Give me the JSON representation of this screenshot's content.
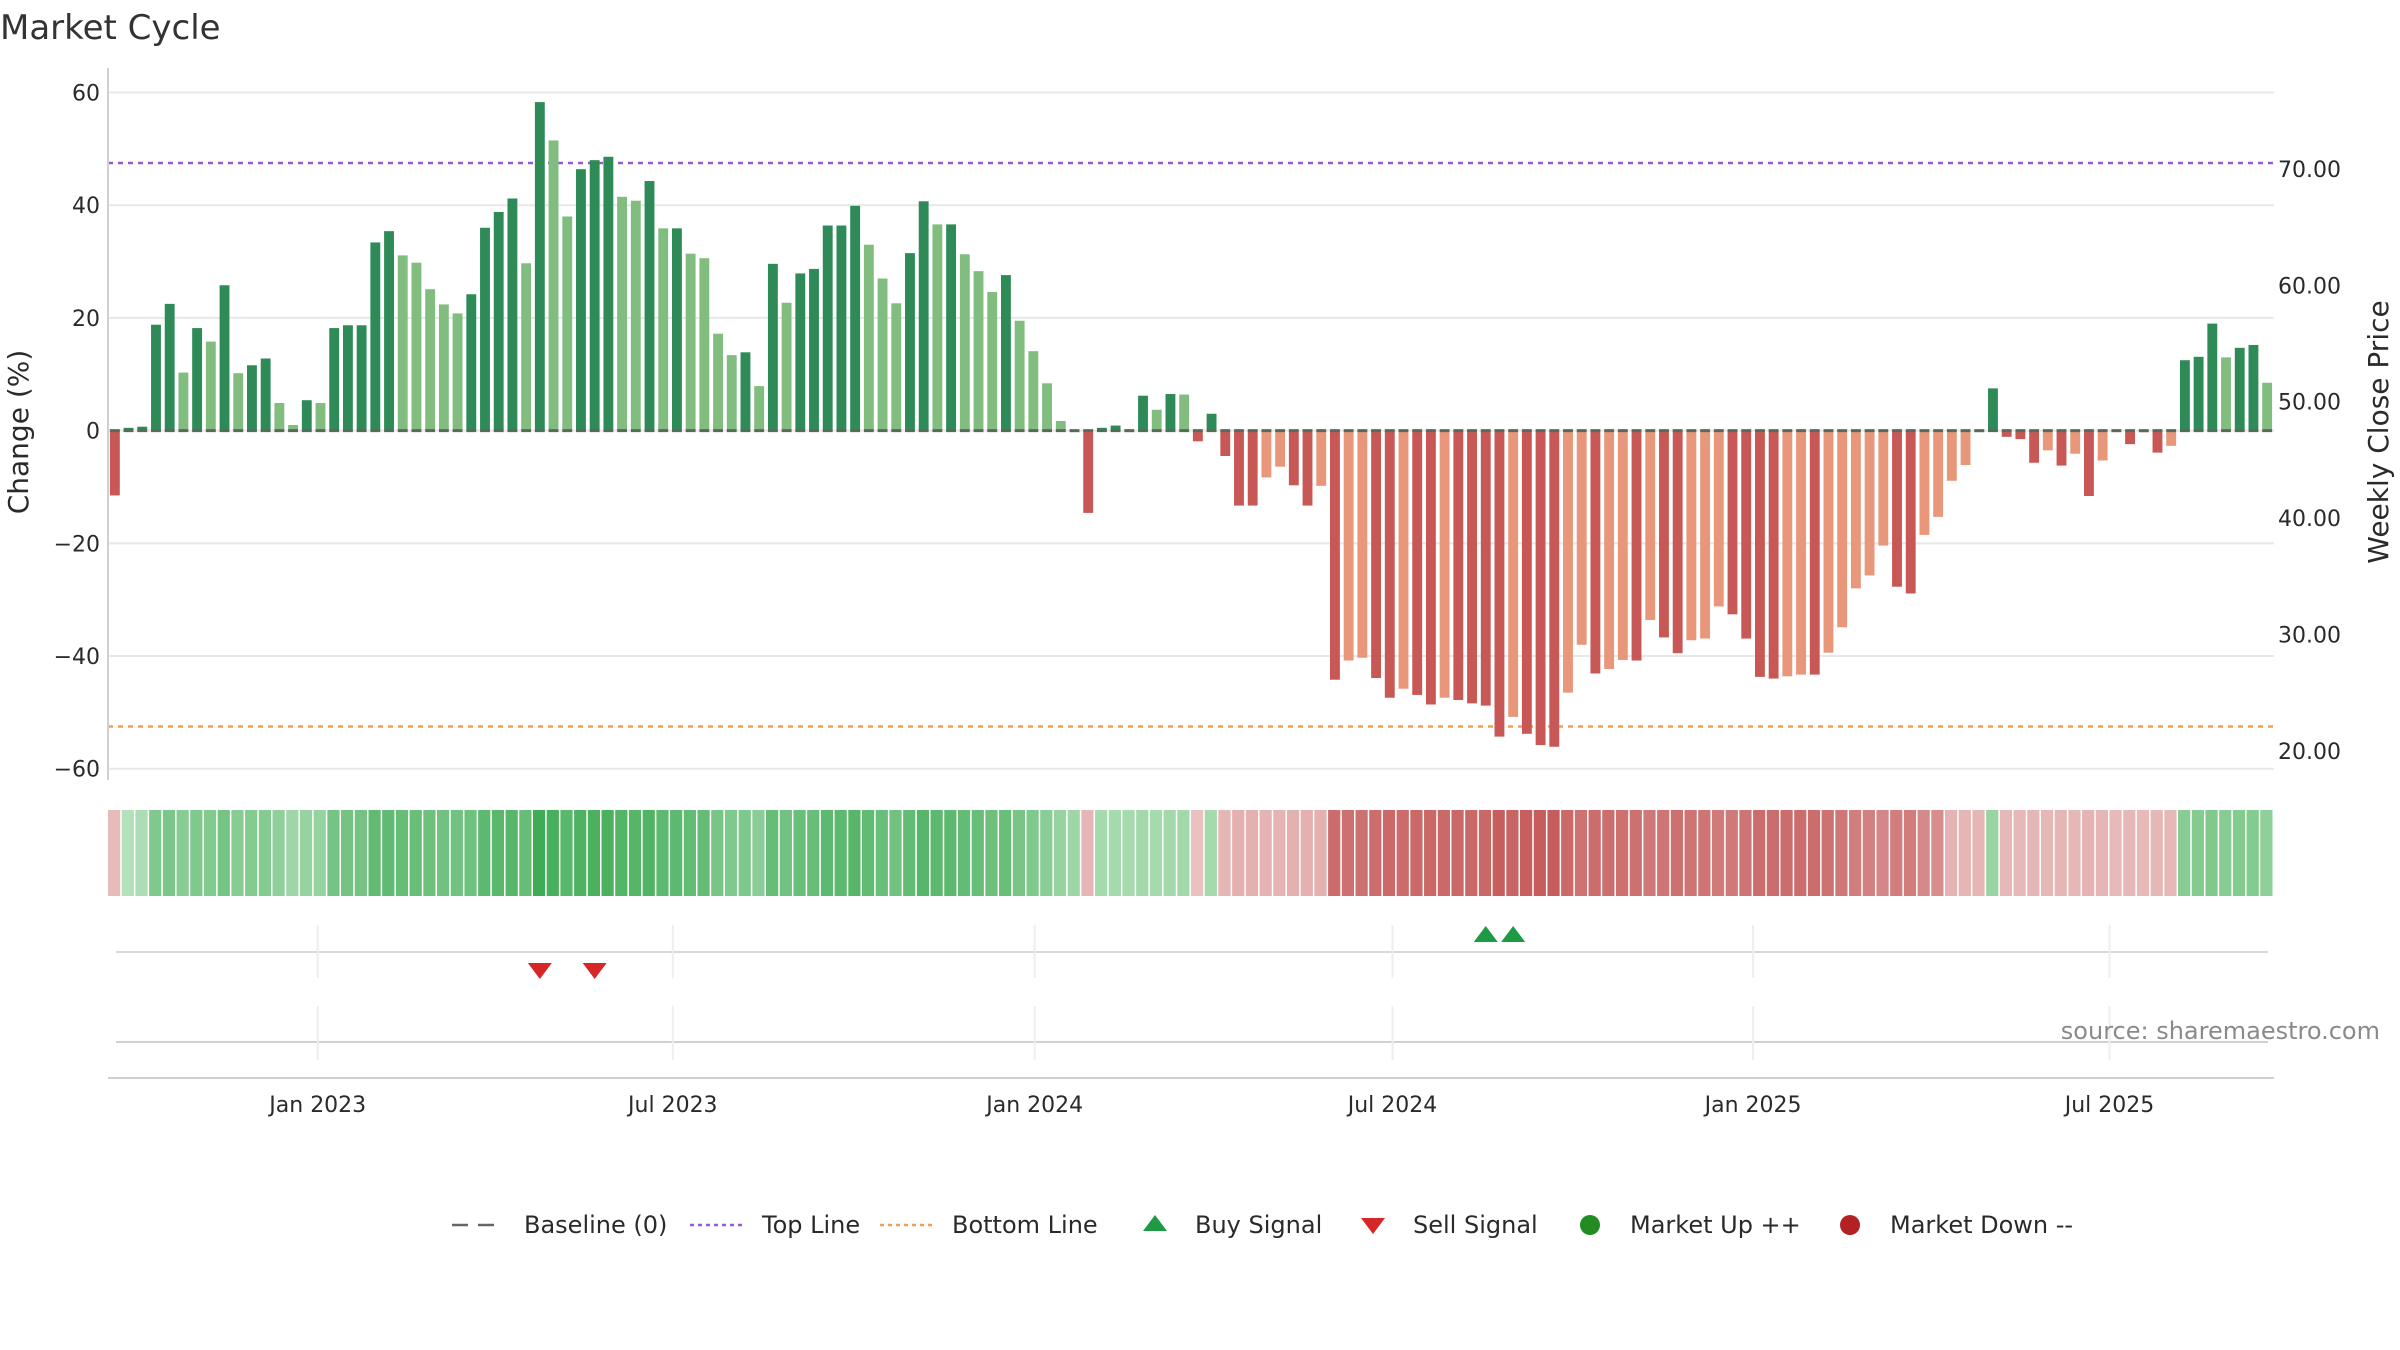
{
  "chart_data": {
    "type": "bar",
    "title": "Market Cycle",
    "ylabel_left": "Change (%)",
    "ylabel_right": "Weekly Close Price",
    "ylim_left": [
      -62,
      64
    ],
    "ylim_right": [
      17.5,
      78.5
    ],
    "left_ticks": [
      {
        "value": 60,
        "label": "60"
      },
      {
        "value": 40,
        "label": "40"
      },
      {
        "value": 20,
        "label": "20"
      },
      {
        "value": 0,
        "label": "0"
      },
      {
        "value": -20,
        "label": "−20"
      },
      {
        "value": -40,
        "label": "−40"
      },
      {
        "value": -60,
        "label": "−60"
      }
    ],
    "right_ticks": [
      {
        "value": 70,
        "label": "70.00"
      },
      {
        "value": 60,
        "label": "60.00"
      },
      {
        "value": 50,
        "label": "50.00"
      },
      {
        "value": 40,
        "label": "40.00"
      },
      {
        "value": 30,
        "label": "30.00"
      },
      {
        "value": 20,
        "label": "20.00"
      }
    ],
    "x_ticks": [
      {
        "week": 15.3,
        "label": "Jan 2023"
      },
      {
        "week": 41.2,
        "label": "Jul 2023"
      },
      {
        "week": 67.6,
        "label": "Jan 2024"
      },
      {
        "week": 93.7,
        "label": "Jul 2024"
      },
      {
        "week": 120.0,
        "label": "Jan 2025"
      },
      {
        "week": 146.0,
        "label": "Jul 2025"
      }
    ],
    "top_line": 47.5,
    "bottom_line": -52.5,
    "baseline": 0,
    "changes": [
      -11.5,
      0.5,
      0.7,
      18.8,
      22.5,
      10.3,
      18.2,
      15.8,
      25.8,
      10.2,
      11.6,
      12.8,
      4.9,
      1.0,
      5.4,
      4.9,
      18.2,
      18.7,
      18.7,
      33.4,
      35.4,
      31.1,
      29.8,
      25.1,
      22.4,
      20.8,
      24.2,
      36.0,
      38.8,
      41.2,
      29.7,
      58.3,
      51.5,
      38.0,
      46.4,
      48.0,
      48.6,
      41.5,
      40.8,
      44.3,
      35.9,
      35.9,
      31.4,
      30.6,
      17.2,
      13.4,
      13.9,
      7.9,
      29.6,
      22.7,
      27.9,
      28.7,
      36.4,
      36.4,
      39.9,
      33.0,
      27.0,
      22.6,
      31.5,
      40.7,
      36.6,
      36.6,
      31.3,
      28.3,
      24.6,
      27.6,
      19.5,
      14.1,
      8.4,
      1.7,
      0.0,
      -14.6,
      0.5,
      0.9,
      0.0,
      6.2,
      3.7,
      6.5,
      6.4,
      -1.9,
      3.0,
      -4.5,
      -13.3,
      -13.3,
      -8.3,
      -6.4,
      -9.7,
      -13.3,
      -9.8,
      -44.2,
      -40.8,
      -40.3,
      -43.9,
      -47.4,
      -45.8,
      -46.9,
      -48.6,
      -47.4,
      -47.8,
      -48.4,
      -48.8,
      -54.3,
      -50.8,
      -53.8,
      -55.8,
      -56.1,
      -46.5,
      -38.0,
      -43.1,
      -42.3,
      -40.7,
      -40.8,
      -33.6,
      -36.7,
      -39.5,
      -37.2,
      -36.9,
      -31.2,
      -32.6,
      -36.9,
      -43.7,
      -44.0,
      -43.6,
      -43.3,
      -43.3,
      -39.4,
      -34.9,
      -28.0,
      -25.7,
      -20.4,
      -27.7,
      -28.9,
      -18.5,
      -15.3,
      -8.9,
      -6.1,
      0.0,
      7.5,
      -1.1,
      -1.5,
      -5.7,
      -3.5,
      -6.2,
      -4.1,
      -11.6,
      -5.3,
      -0.2,
      -2.4,
      -0.3,
      -3.9,
      -2.7,
      12.5,
      13.1,
      19.0,
      13.0,
      14.7,
      15.2,
      8.5
    ],
    "heat_strip": [
      -0.15,
      0.2,
      0.25,
      0.55,
      0.58,
      0.5,
      0.55,
      0.53,
      0.62,
      0.5,
      0.52,
      0.52,
      0.45,
      0.35,
      0.4,
      0.4,
      0.62,
      0.63,
      0.63,
      0.75,
      0.76,
      0.72,
      0.71,
      0.67,
      0.65,
      0.64,
      0.66,
      0.78,
      0.8,
      0.82,
      0.72,
      0.98,
      0.92,
      0.8,
      0.88,
      0.9,
      0.9,
      0.84,
      0.83,
      0.86,
      0.78,
      0.78,
      0.74,
      0.73,
      0.6,
      0.55,
      0.56,
      0.48,
      0.72,
      0.65,
      0.7,
      0.71,
      0.78,
      0.78,
      0.82,
      0.75,
      0.7,
      0.65,
      0.74,
      0.82,
      0.78,
      0.78,
      0.74,
      0.71,
      0.67,
      0.7,
      0.6,
      0.55,
      0.48,
      0.4,
      0.35,
      -0.2,
      0.3,
      0.3,
      0.3,
      0.32,
      0.3,
      0.32,
      0.32,
      -0.1,
      0.3,
      -0.2,
      -0.25,
      -0.25,
      -0.22,
      -0.22,
      -0.24,
      -0.25,
      -0.25,
      -0.85,
      -0.82,
      -0.82,
      -0.85,
      -0.88,
      -0.87,
      -0.88,
      -0.9,
      -0.88,
      -0.89,
      -0.9,
      -0.9,
      -0.98,
      -0.93,
      -0.97,
      -1.0,
      -1.0,
      -0.88,
      -0.8,
      -0.85,
      -0.84,
      -0.82,
      -0.82,
      -0.75,
      -0.78,
      -0.82,
      -0.79,
      -0.79,
      -0.73,
      -0.74,
      -0.79,
      -0.85,
      -0.85,
      -0.85,
      -0.85,
      -0.85,
      -0.81,
      -0.77,
      -0.7,
      -0.68,
      -0.62,
      -0.7,
      -0.71,
      -0.6,
      -0.56,
      -0.22,
      -0.2,
      -0.2,
      0.38,
      -0.18,
      -0.18,
      -0.2,
      -0.19,
      -0.2,
      -0.19,
      -0.22,
      -0.2,
      -0.17,
      -0.18,
      -0.17,
      -0.19,
      -0.18,
      0.5,
      0.52,
      0.55,
      0.5,
      0.52,
      0.52,
      0.45
    ],
    "buy_signals": [
      100,
      102
    ],
    "sell_signals": [
      31,
      35
    ],
    "source_label": "source: sharemaestro.com",
    "legend": [
      {
        "label": "Baseline (0)",
        "marker": "dash",
        "color": "#666666"
      },
      {
        "label": "Top Line",
        "marker": "dotted",
        "color": "#9b59d0"
      },
      {
        "label": "Bottom Line",
        "marker": "dotted",
        "color": "#f0a050"
      },
      {
        "label": "Buy Signal",
        "marker": "triangle-up",
        "color": "#1e9a45"
      },
      {
        "label": "Sell Signal",
        "marker": "triangle-down",
        "color": "#d62728"
      },
      {
        "label": "Market Up ++",
        "marker": "circle",
        "color": "#228b22"
      },
      {
        "label": "Market Down --",
        "marker": "circle",
        "color": "#b22222"
      }
    ],
    "colors": {
      "up_strong": "#2e8b57",
      "up_light": "#80bd7e",
      "down_strong": "#c85856",
      "down_light": "#e8977b",
      "top_line": "#9b59d0",
      "bottom_line": "#f0a050",
      "grid": "#e8e8e8",
      "baseline": "#666666"
    },
    "grid": true
  }
}
